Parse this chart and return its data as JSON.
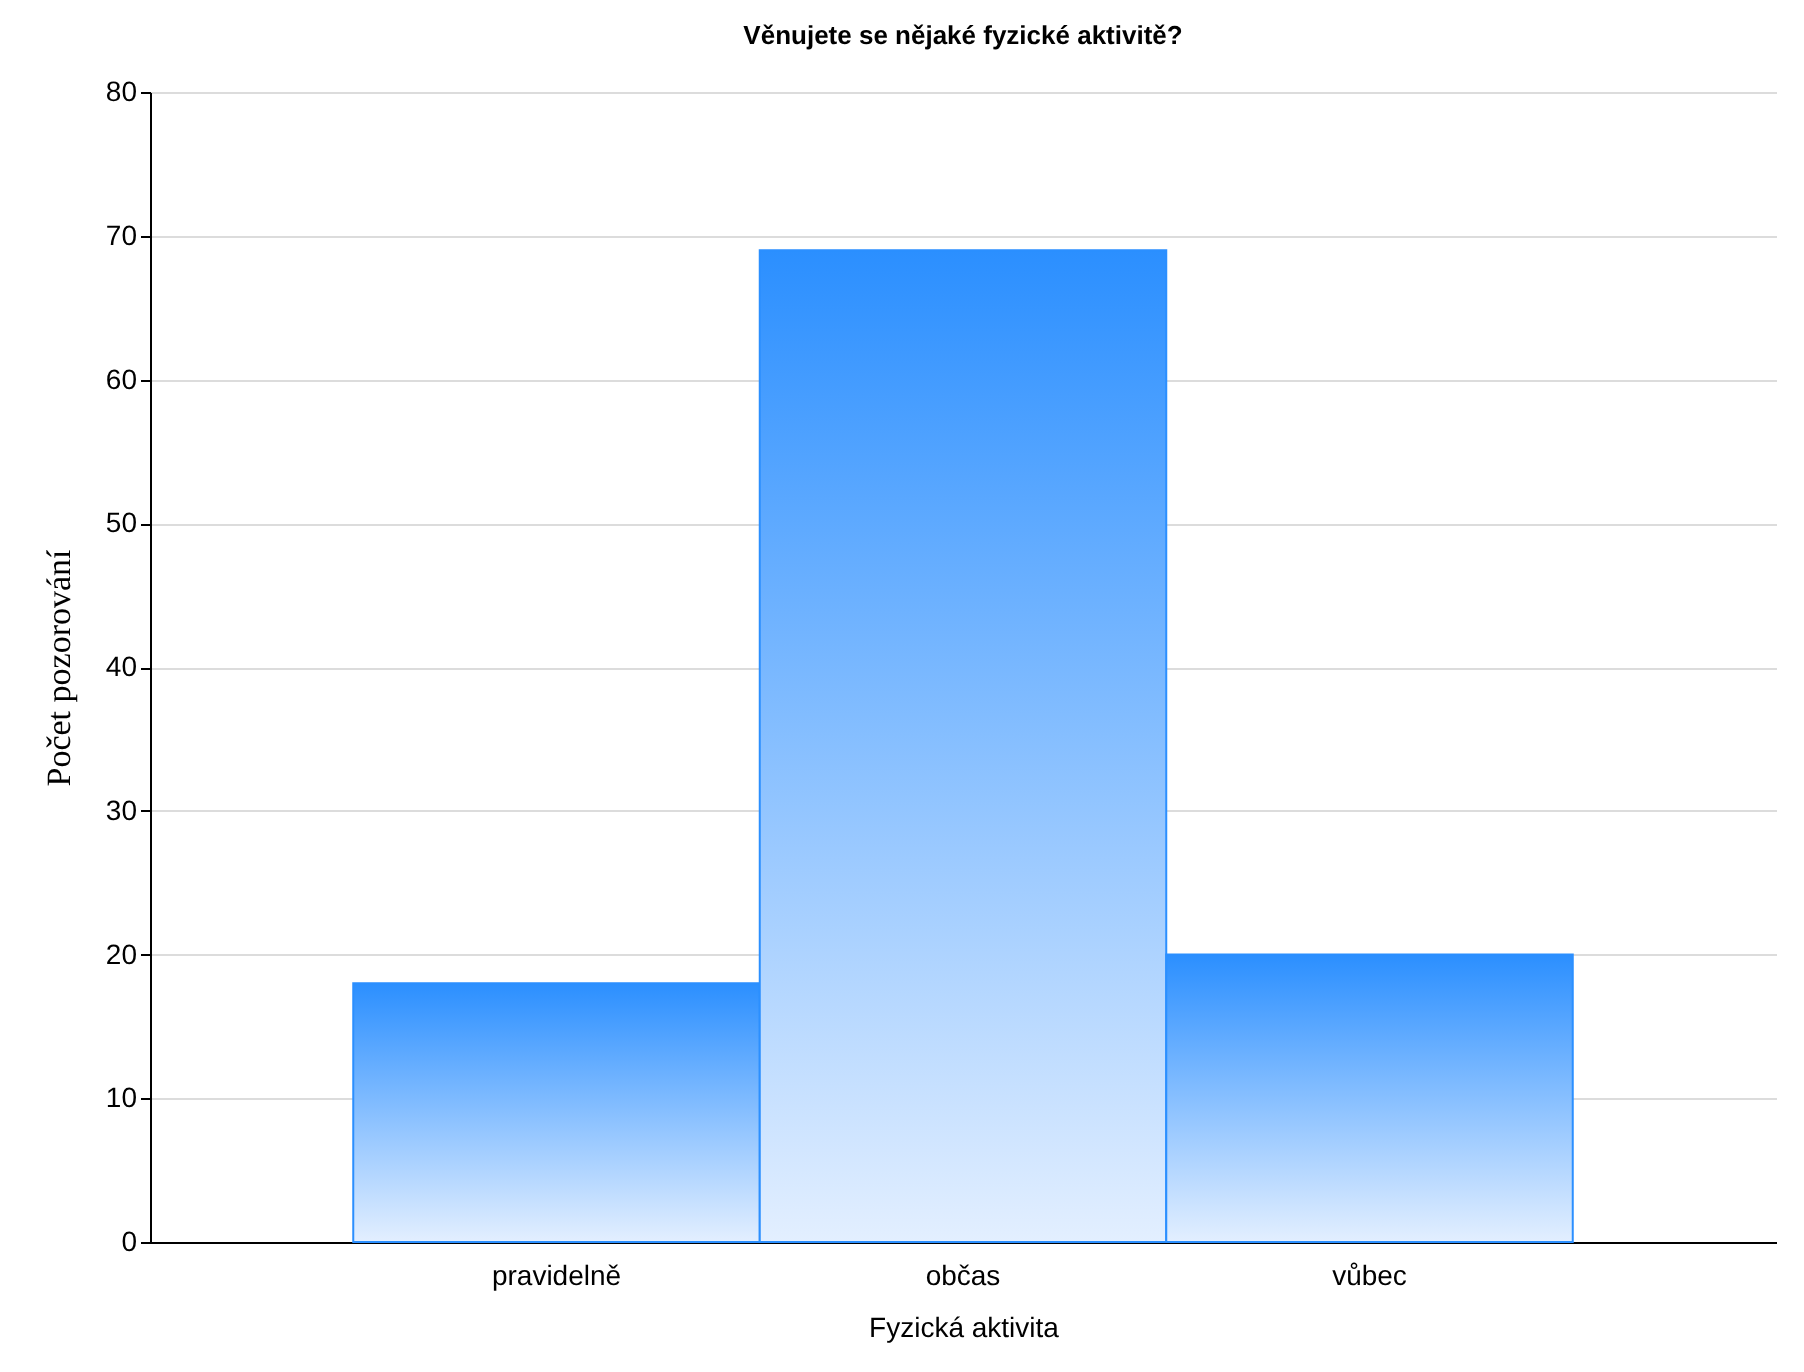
{
  "chart_data": {
    "type": "bar",
    "title": "Věnujete se nějaké fyzické aktivitě?",
    "xlabel": "Fyzická aktivita",
    "ylabel": "Počet pozorování",
    "categories": [
      "pravidelně",
      "občas",
      "vůbec"
    ],
    "series": [
      {
        "color": "#2b8fff",
        "values": [
          18,
          69,
          20
        ]
      }
    ],
    "ylim": [
      0,
      80
    ],
    "yticks": [
      0,
      10,
      20,
      30,
      40,
      50,
      60,
      70,
      80
    ],
    "grid": "y",
    "legend": false
  }
}
